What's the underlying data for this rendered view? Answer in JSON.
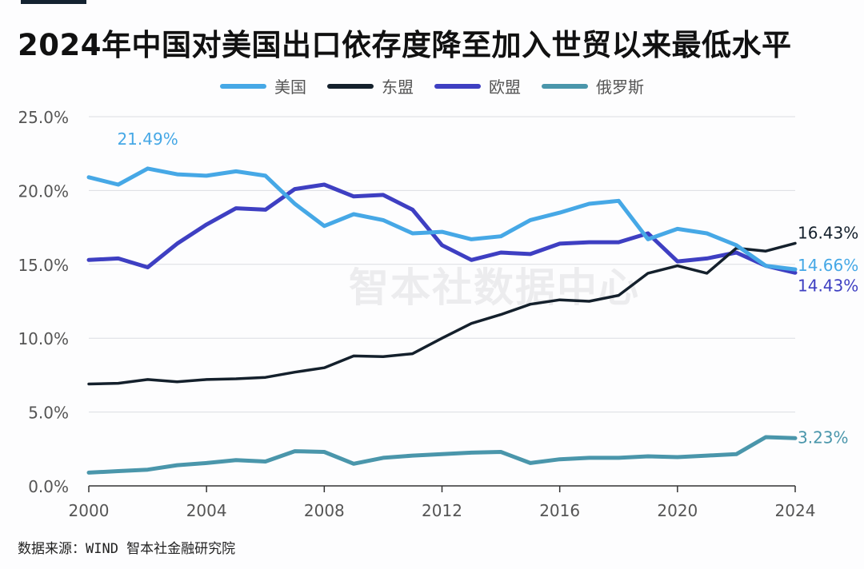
{
  "title": "2024年中国对美国出口依存度降至加入世贸以来最低水平",
  "source": "数据来源：WIND 智本社金融研究院",
  "watermark": "智本社数据中心",
  "chart_data": {
    "type": "line",
    "x": [
      2000,
      2001,
      2002,
      2003,
      2004,
      2005,
      2006,
      2007,
      2008,
      2009,
      2010,
      2011,
      2012,
      2013,
      2014,
      2015,
      2016,
      2017,
      2018,
      2019,
      2020,
      2021,
      2022,
      2023,
      2024
    ],
    "xticks": [
      "2000",
      "2004",
      "2008",
      "2012",
      "2016",
      "2020",
      "2024"
    ],
    "yticks": [
      "0.0%",
      "5.0%",
      "10.0%",
      "15.0%",
      "20.0%",
      "25.0%"
    ],
    "ylim": [
      0,
      25
    ],
    "xlim": [
      2000,
      2024
    ],
    "grid": "horizontal",
    "legend_position": "top-center",
    "series": [
      {
        "name": "美国",
        "color": "#46a8e6",
        "values": [
          20.9,
          20.4,
          21.49,
          21.1,
          21.0,
          21.3,
          21.0,
          19.1,
          17.6,
          18.4,
          18.0,
          17.1,
          17.2,
          16.7,
          16.9,
          18.0,
          18.5,
          19.1,
          19.3,
          16.7,
          17.4,
          17.1,
          16.3,
          14.9,
          14.66
        ]
      },
      {
        "name": "东盟",
        "color": "#14202c",
        "values": [
          6.9,
          6.95,
          7.2,
          7.05,
          7.2,
          7.25,
          7.35,
          7.7,
          8.0,
          8.8,
          8.75,
          8.95,
          10.0,
          11.0,
          11.6,
          12.3,
          12.6,
          12.5,
          12.9,
          14.4,
          14.9,
          14.4,
          16.1,
          15.9,
          16.43
        ]
      },
      {
        "name": "欧盟",
        "color": "#3e3fc2",
        "values": [
          15.3,
          15.4,
          14.8,
          16.4,
          17.7,
          18.8,
          18.7,
          20.1,
          20.4,
          19.6,
          19.7,
          18.7,
          16.3,
          15.3,
          15.8,
          15.7,
          16.4,
          16.5,
          16.5,
          17.1,
          15.2,
          15.4,
          15.8,
          14.9,
          14.43
        ]
      },
      {
        "name": "俄罗斯",
        "color": "#4a96ab",
        "values": [
          0.9,
          1.0,
          1.1,
          1.4,
          1.55,
          1.75,
          1.65,
          2.35,
          2.3,
          1.5,
          1.9,
          2.05,
          2.15,
          2.25,
          2.3,
          1.55,
          1.8,
          1.9,
          1.9,
          2.0,
          1.95,
          2.05,
          2.15,
          3.3,
          3.23
        ]
      }
    ],
    "annotations": [
      {
        "text": "21.49%",
        "series": 0,
        "x": 2002,
        "color": "#46a8e6"
      },
      {
        "text": "16.43%",
        "series": 1,
        "x": 2024,
        "color": "#14202c"
      },
      {
        "text": "14.66%",
        "series": 0,
        "x": 2024,
        "color": "#46a8e6"
      },
      {
        "text": "14.43%",
        "series": 2,
        "x": 2024,
        "color": "#3e3fc2"
      },
      {
        "text": "3.23%",
        "series": 3,
        "x": 2024,
        "color": "#4a96ab"
      }
    ]
  }
}
